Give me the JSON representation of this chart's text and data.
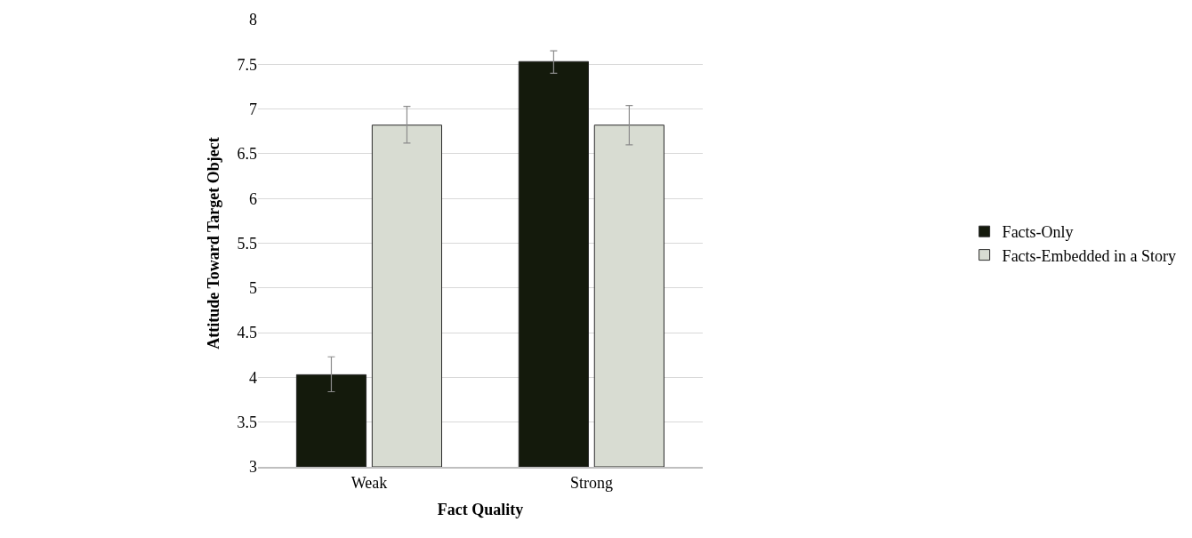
{
  "chart_data": {
    "type": "bar",
    "xlabel": "Fact Quality",
    "ylabel": "Attitude Toward Target Object",
    "categories": [
      "Weak",
      "Strong"
    ],
    "series": [
      {
        "name": "Facts-Only",
        "color": "#141a0c",
        "values": [
          4.03,
          7.53
        ],
        "errors": [
          [
            3.84,
            4.23
          ],
          [
            7.4,
            7.65
          ]
        ]
      },
      {
        "name": "Facts-Embedded in a Story",
        "color": "#d8dcd2",
        "values": [
          6.82,
          6.82
        ],
        "errors": [
          [
            6.62,
            7.03
          ],
          [
            6.6,
            7.04
          ]
        ]
      }
    ],
    "ylim": [
      3,
      8
    ],
    "yticks": [
      3,
      3.5,
      4,
      4.5,
      5,
      5.5,
      6,
      6.5,
      7,
      7.5,
      8
    ],
    "grid": "y",
    "legend": "right"
  }
}
